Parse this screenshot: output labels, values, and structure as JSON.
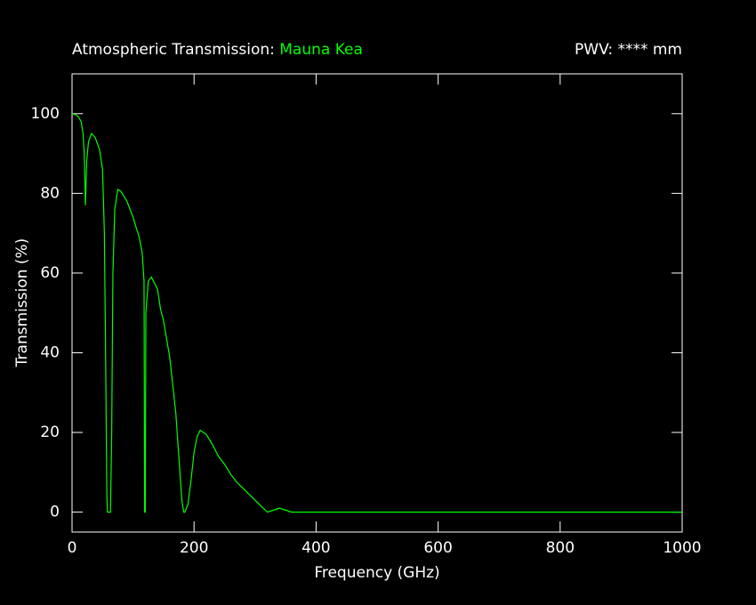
{
  "chart_data": {
    "type": "line",
    "title": "Atmospheric Transmission:",
    "site": "Mauna Kea",
    "annotation": "PWV: **** mm",
    "x_label": "Frequency (GHz)",
    "y_label": "Transmission (%)",
    "x": [
      0,
      5,
      10,
      15,
      18,
      20,
      22,
      24,
      27,
      32,
      38,
      45,
      50,
      53,
      55,
      57,
      58,
      63,
      65,
      67,
      70,
      75,
      80,
      90,
      100,
      110,
      115,
      118,
      119,
      120,
      121,
      125,
      130,
      140,
      145,
      150,
      160,
      170,
      175,
      180,
      183,
      185,
      190,
      195,
      200,
      205,
      210,
      220,
      230,
      240,
      250,
      260,
      270,
      280,
      290,
      300,
      310,
      320,
      330,
      340,
      350,
      360,
      380,
      1000
    ],
    "series": [
      {
        "color": "#00ff00",
        "values": [
          100,
          99.8,
          99.3,
          98,
          95,
          90,
          77,
          88,
          93,
          95,
          94,
          91,
          86,
          70,
          40,
          5,
          0,
          0,
          20,
          60,
          76,
          81,
          80.5,
          78,
          74,
          69,
          65,
          58,
          0,
          0,
          50,
          58,
          59,
          56,
          51,
          48,
          39,
          25,
          14,
          3,
          0,
          0,
          2,
          8,
          15,
          19,
          20.5,
          19.5,
          17,
          14,
          12,
          9.5,
          7.5,
          6,
          4.5,
          3,
          1.5,
          0,
          0.5,
          1,
          0.5,
          0,
          0,
          0
        ]
      }
    ],
    "xlim": [
      0,
      1000
    ],
    "ylim": [
      -5,
      110
    ],
    "xticks": [
      0,
      200,
      400,
      600,
      800,
      1000
    ],
    "yticks": [
      0,
      20,
      40,
      60,
      80,
      100
    ]
  }
}
